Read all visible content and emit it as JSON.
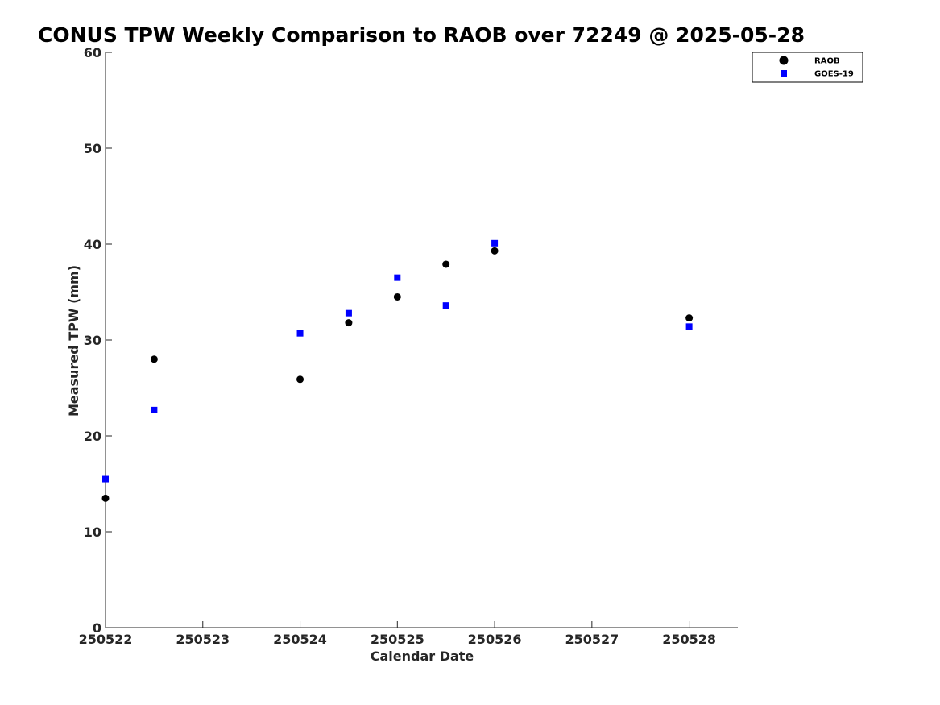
{
  "chart_data": {
    "type": "scatter",
    "title": "CONUS TPW Weekly Comparison to RAOB over 72249 @ 2025-05-28",
    "xlabel": "Calendar Date",
    "ylabel": "Measured TPW (mm)",
    "xlim": [
      250522,
      250528.5
    ],
    "ylim": [
      0,
      60
    ],
    "x_ticks": [
      250522,
      250523,
      250524,
      250525,
      250526,
      250527,
      250528
    ],
    "x_tick_labels": [
      "250522",
      "250523",
      "250524",
      "250525",
      "250526",
      "250527",
      "250528"
    ],
    "y_ticks": [
      0,
      10,
      20,
      30,
      40,
      50,
      60
    ],
    "y_tick_labels": [
      "0",
      "10",
      "20",
      "30",
      "40",
      "50",
      "60"
    ],
    "grid": false,
    "legend_position": "top-right",
    "series": [
      {
        "name": "RAOB",
        "marker": "circle",
        "color": "#000000",
        "x": [
          250522,
          250522.5,
          250524,
          250524.5,
          250525,
          250525.5,
          250526,
          250528
        ],
        "y": [
          13.5,
          28.0,
          25.9,
          31.8,
          34.5,
          37.9,
          39.3,
          32.3
        ]
      },
      {
        "name": "GOES-19",
        "marker": "square",
        "color": "#0000ff",
        "x": [
          250522,
          250522.5,
          250524,
          250524.5,
          250525,
          250525.5,
          250526,
          250528
        ],
        "y": [
          15.5,
          22.7,
          30.7,
          32.8,
          36.5,
          33.6,
          40.1,
          31.4
        ]
      }
    ]
  }
}
